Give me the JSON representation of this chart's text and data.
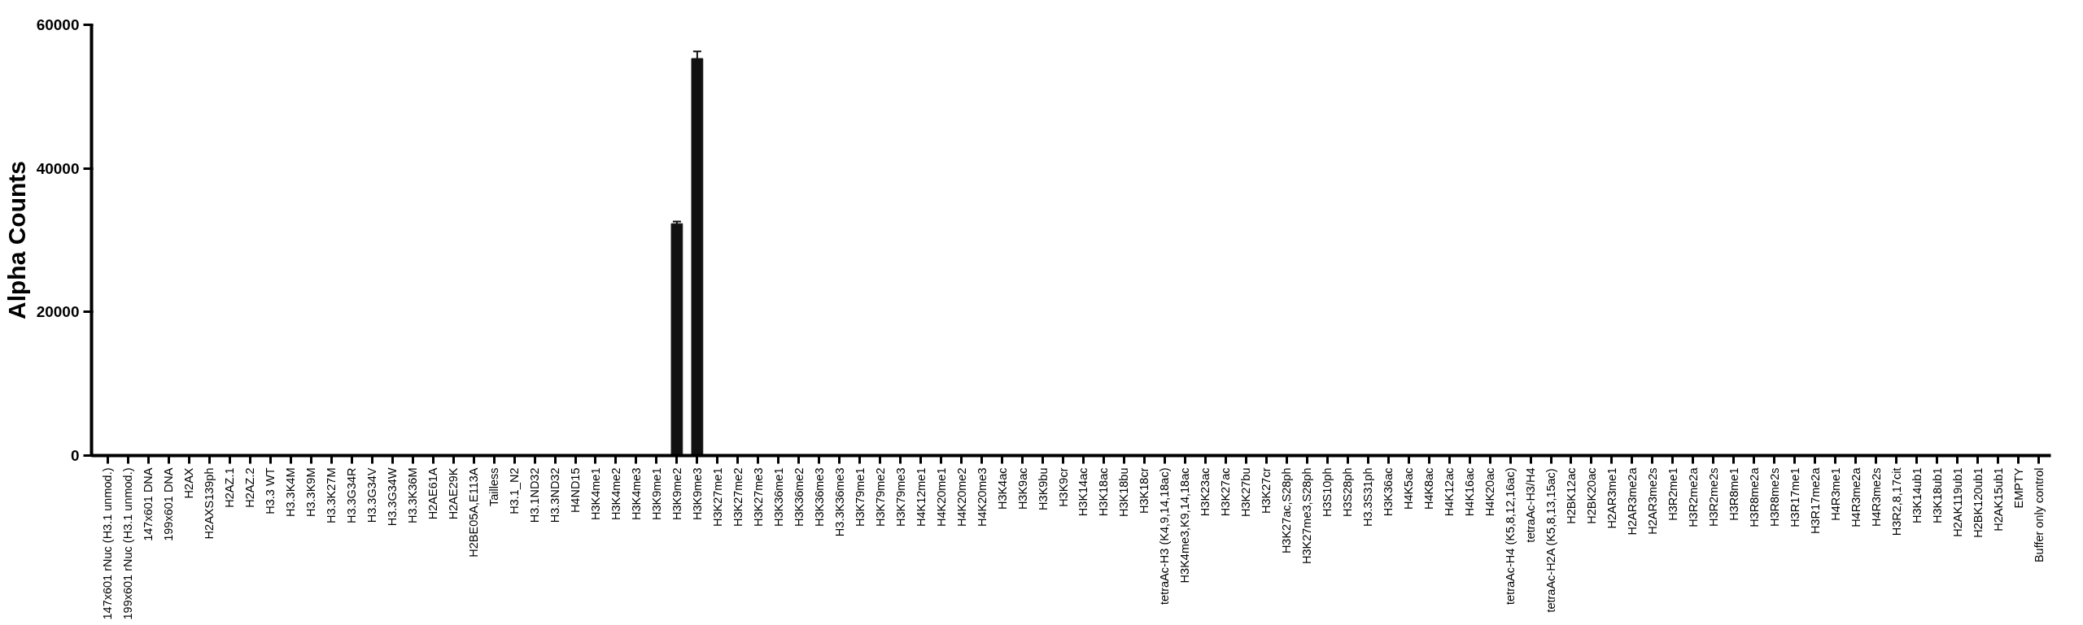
{
  "chart_data": {
    "type": "bar",
    "ylabel": "Alpha Counts",
    "categories": [
      "147x601 rNuc (H3.1 unmod.)",
      "199x601 rNuc (H3.1 unmod.)",
      "147x601 DNA",
      "199x601 DNA",
      "H2AX",
      "H2AXS139ph",
      "H2AZ.1",
      "H2AZ.2",
      "H3.3 WT",
      "H3.3K4M",
      "H3.3K9M",
      "H3.3K27M",
      "H3.3G34R",
      "H3.3G34V",
      "H3.3G34W",
      "H3.3K36M",
      "H2AE61A",
      "H2AE29K",
      "H2BE05A,E113A",
      "Tailless",
      "H3.1_N2",
      "H3.1ND32",
      "H3.3ND32",
      "H4ND15",
      "H3K4me1",
      "H3K4me2",
      "H3K4me3",
      "H3K9me1",
      "H3K9me2",
      "H3K9me3",
      "H3K27me1",
      "H3K27me2",
      "H3K27me3",
      "H3K36me1",
      "H3K36me2",
      "H3K36me3",
      "H3.3K36me3",
      "H3K79me1",
      "H3K79me2",
      "H3K79me3",
      "H4K12me1",
      "H4K20me1",
      "H4K20me2",
      "H4K20me3",
      "H3K4ac",
      "H3K9ac",
      "H3K9bu",
      "H3K9cr",
      "H3K14ac",
      "H3K18ac",
      "H3K18bu",
      "H3K18cr",
      "tetraAc-H3 (K4,9,14,18ac)",
      "H3K4me3,K9,14,18ac",
      "H3K23ac",
      "H3K27ac",
      "H3K27bu",
      "H3K27cr",
      "H3K27ac,S28ph",
      "H3K27me3,S28ph",
      "H3S10ph",
      "H3S28ph",
      "H3.3S31ph",
      "H3K36ac",
      "H4K5ac",
      "H4K8ac",
      "H4K12ac",
      "H4K16ac",
      "H4K20ac",
      "tetraAc-H4 (K5,8,12,16ac)",
      "tetraAc-H3/H4",
      "tetraAc-H2A (K5,8,13,15ac)",
      "H2BK12ac",
      "H2BK20ac",
      "H2AR3me1",
      "H2AR3me2a",
      "H2AR3me2s",
      "H3R2me1",
      "H3R2me2a",
      "H3R2me2s",
      "H3R8me1",
      "H3R8me2a",
      "H3R8me2s",
      "H3R17me1",
      "H3R17me2a",
      "H4R3me1",
      "H4R3me2a",
      "H4R3me2s",
      "H3R2,8,17cit",
      "H3K14ub1",
      "H3K18ub1",
      "H2AK119ub1",
      "H2BK120ub1",
      "H2AK15ub1",
      "EMPTY",
      "Buffer only control"
    ],
    "values": [
      0,
      0,
      0,
      0,
      0,
      0,
      0,
      0,
      0,
      0,
      0,
      0,
      0,
      0,
      0,
      0,
      0,
      0,
      0,
      0,
      0,
      0,
      0,
      0,
      0,
      0,
      0,
      0,
      32300,
      55300,
      0,
      0,
      0,
      0,
      0,
      0,
      0,
      0,
      0,
      0,
      0,
      0,
      0,
      0,
      0,
      0,
      0,
      0,
      0,
      0,
      0,
      0,
      0,
      0,
      0,
      0,
      0,
      0,
      0,
      0,
      0,
      0,
      0,
      0,
      0,
      0,
      0,
      0,
      0,
      0,
      0,
      0,
      0,
      0,
      0,
      0,
      0,
      0,
      0,
      0,
      0,
      0,
      0,
      0,
      0,
      0,
      0,
      0,
      0,
      0,
      0,
      0,
      0,
      0,
      0,
      0
    ],
    "errors": [
      null,
      null,
      null,
      null,
      null,
      null,
      null,
      null,
      null,
      null,
      null,
      null,
      null,
      null,
      null,
      null,
      null,
      null,
      null,
      null,
      null,
      null,
      null,
      null,
      null,
      null,
      null,
      null,
      300,
      1000,
      null,
      null,
      null,
      null,
      null,
      null,
      null,
      null,
      null,
      null,
      null,
      null,
      null,
      null,
      null,
      null,
      null,
      null,
      null,
      null,
      null,
      null,
      null,
      null,
      null,
      null,
      null,
      null,
      null,
      null,
      null,
      null,
      null,
      null,
      null,
      null,
      null,
      null,
      null,
      null,
      null,
      null,
      null,
      null,
      null,
      null,
      null,
      null,
      null,
      null,
      null,
      null,
      null,
      null,
      null,
      null,
      null,
      null,
      null,
      null,
      null,
      null,
      null,
      null,
      null,
      null
    ],
    "color": "#111111",
    "ylim": [
      0,
      60000
    ],
    "yticks": [
      0,
      20000,
      40000,
      60000
    ],
    "grid": false
  }
}
